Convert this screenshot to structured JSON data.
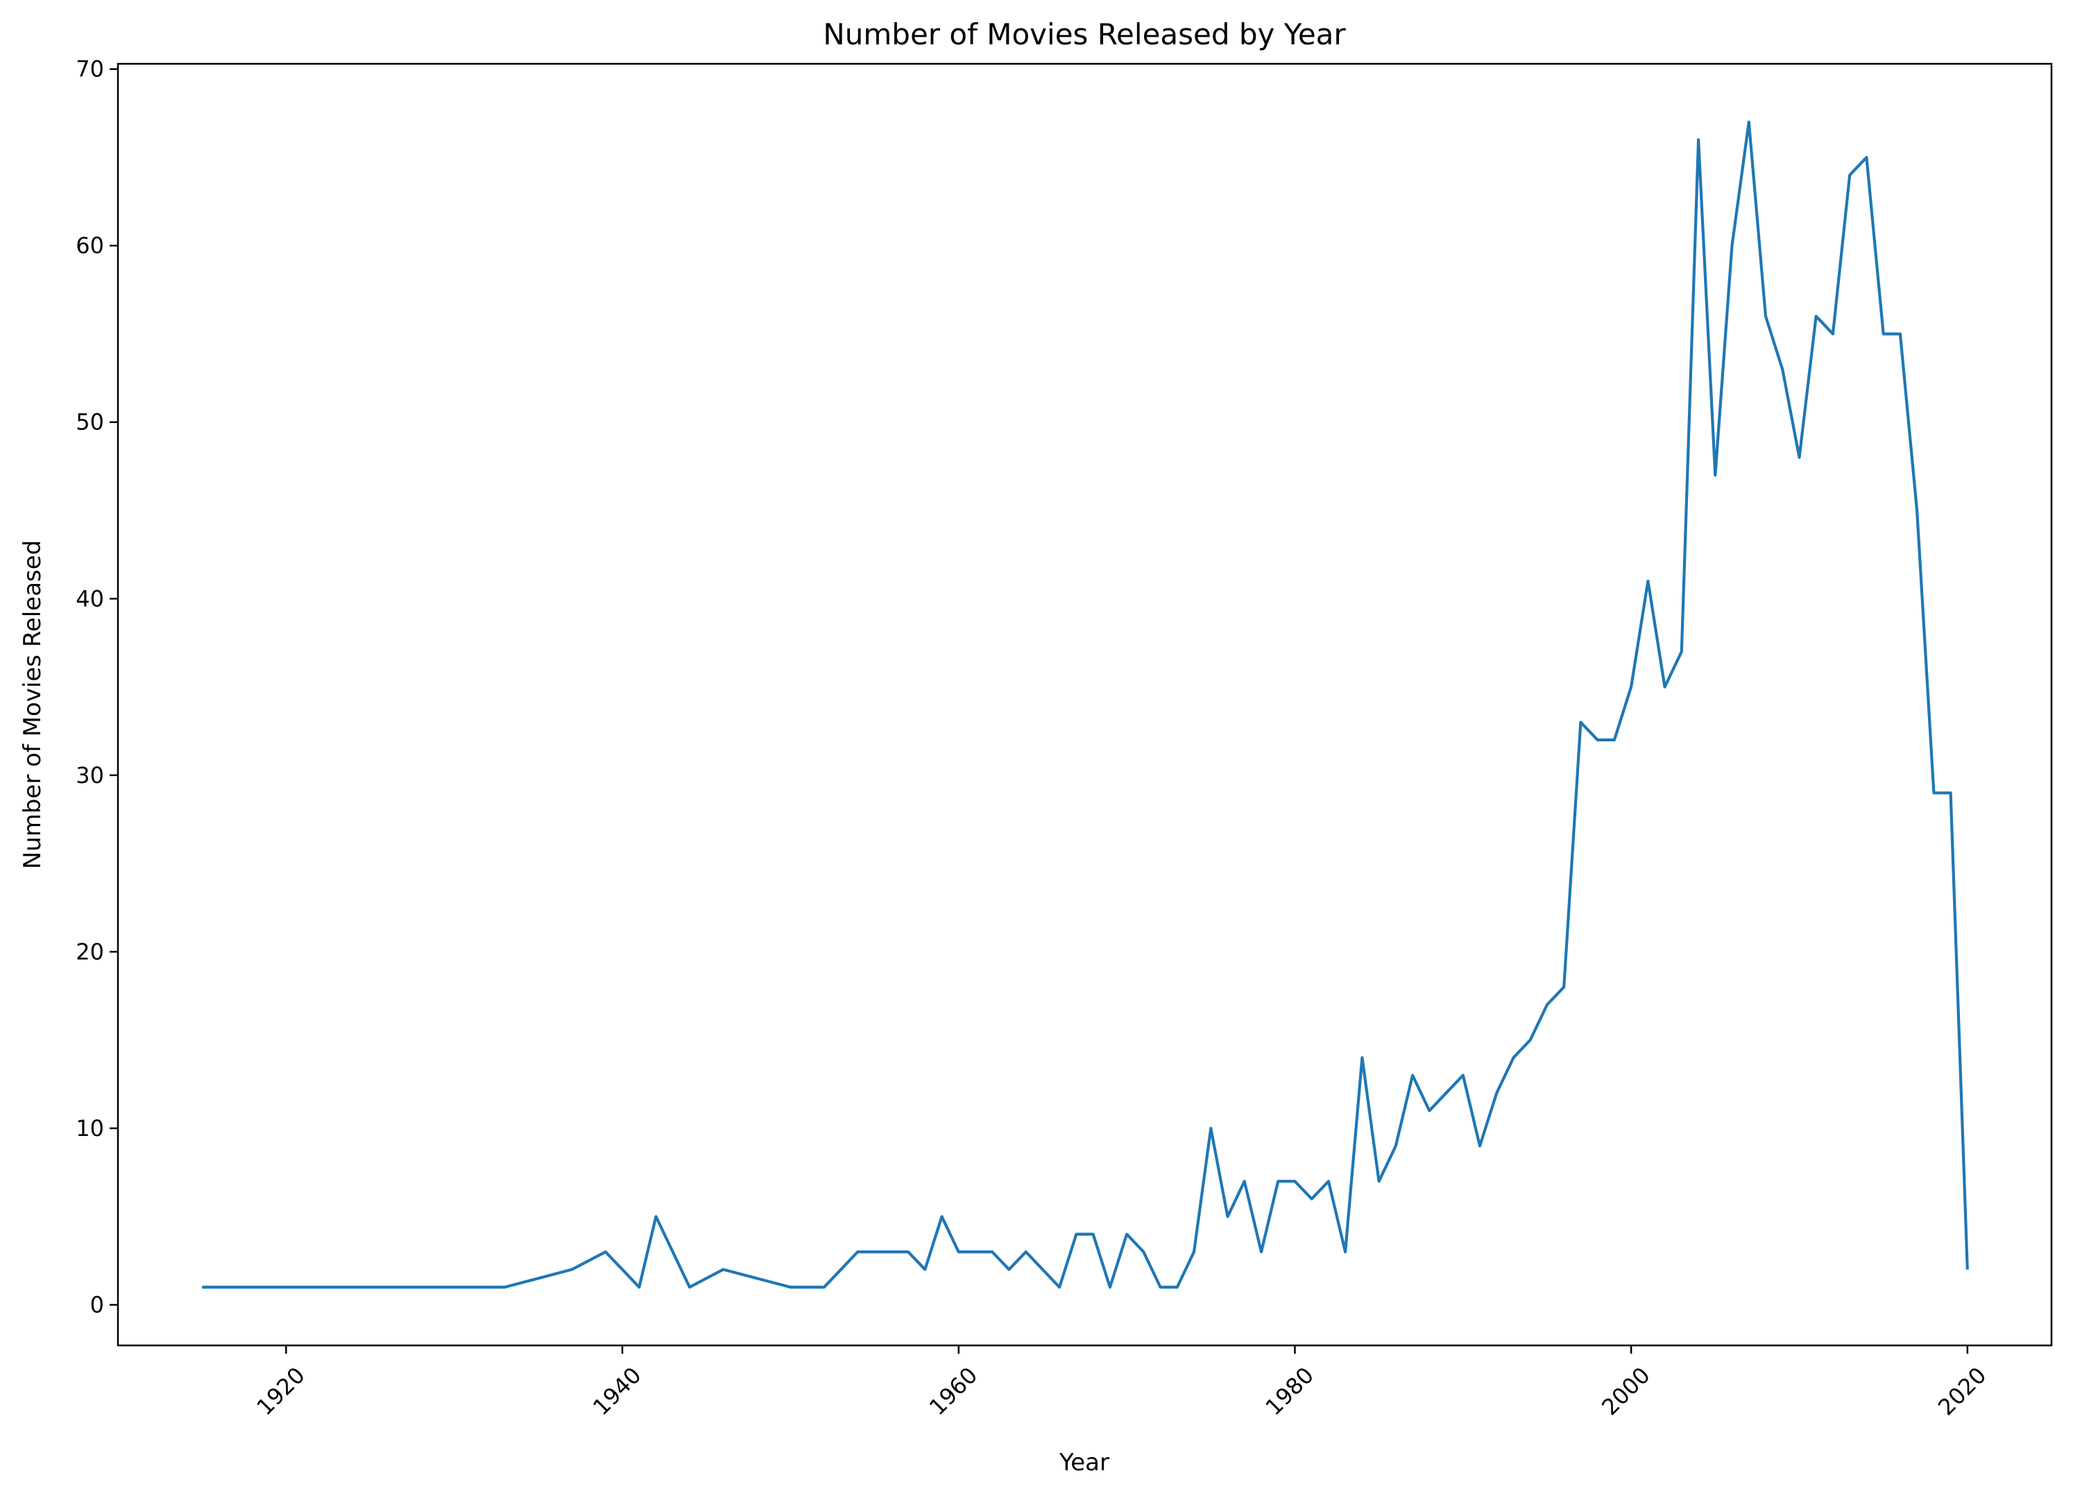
{
  "chart_data": {
    "type": "line",
    "title": "Number of Movies Released by Year",
    "xlabel": "Year",
    "ylabel": "Number of Movies Released",
    "xlim": [
      1910,
      2025
    ],
    "ylim": [
      -2.3,
      70.3
    ],
    "xticks": [
      1920,
      1940,
      1960,
      1980,
      2000,
      2020
    ],
    "yticks": [
      0,
      10,
      20,
      30,
      40,
      50,
      60,
      70
    ],
    "x_tick_rotation": 45,
    "grid": false,
    "legend": "none",
    "line_color": "#1f77b4",
    "series": [
      {
        "x": [
          1915,
          1916,
          1917,
          1918,
          1919,
          1920,
          1921,
          1922,
          1923,
          1924,
          1925,
          1926,
          1927,
          1928,
          1929,
          1930,
          1931,
          1932,
          1933,
          1937,
          1939,
          1941,
          1942,
          1944,
          1946,
          1950,
          1952,
          1954,
          1955,
          1956,
          1957,
          1958,
          1959,
          1960,
          1961,
          1962,
          1963,
          1964,
          1966,
          1967,
          1968,
          1969,
          1970,
          1971,
          1972,
          1973,
          1974,
          1975,
          1976,
          1977,
          1978,
          1979,
          1980,
          1981,
          1982,
          1983,
          1984,
          1985,
          1986,
          1987,
          1988,
          1989,
          1990,
          1991,
          1992,
          1993,
          1994,
          1995,
          1996,
          1997,
          1998,
          1999,
          2000,
          2001,
          2002,
          2003,
          2004,
          2005,
          2006,
          2007,
          2008,
          2009,
          2010,
          2011,
          2012,
          2013,
          2014,
          2015,
          2016,
          2017,
          2018,
          2019,
          2020
        ],
        "values": [
          1,
          1,
          1,
          1,
          1,
          1,
          1,
          1,
          1,
          1,
          1,
          1,
          1,
          1,
          1,
          1,
          1,
          1,
          1,
          2,
          3,
          1,
          5,
          1,
          2,
          1,
          1,
          3,
          3,
          3,
          3,
          2,
          5,
          3,
          3,
          3,
          2,
          3,
          1,
          4,
          4,
          1,
          4,
          3,
          1,
          1,
          3,
          10,
          5,
          7,
          3,
          7,
          7,
          6,
          7,
          3,
          14,
          7,
          9,
          13,
          11,
          12,
          13,
          9,
          12,
          14,
          15,
          17,
          18,
          33,
          32,
          32,
          35,
          41,
          35,
          37,
          66,
          47,
          60,
          67,
          56,
          53,
          48,
          56,
          55,
          64,
          65,
          55,
          55,
          45,
          29,
          29,
          2
        ]
      }
    ]
  }
}
